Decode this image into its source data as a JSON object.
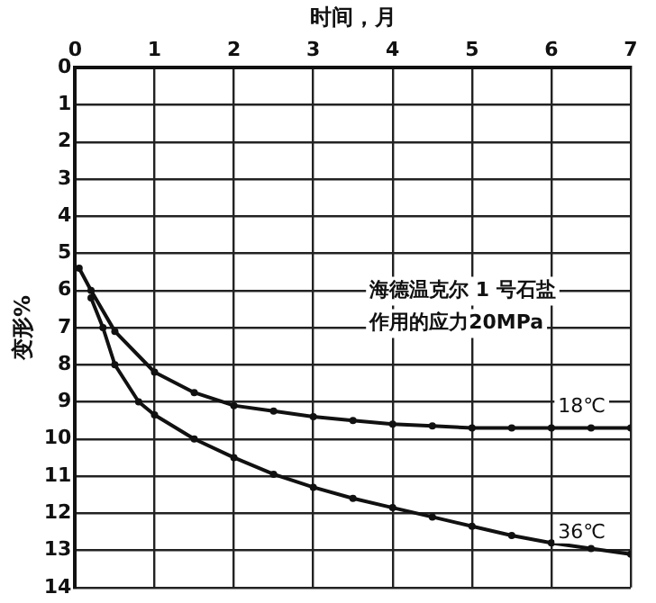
{
  "chart_data": {
    "type": "line",
    "xlabel": "时间，月",
    "ylabel": "变形%",
    "annotations": [
      "海德温克尔 1 号石盐",
      "作用的应力20MPa"
    ],
    "xlim": [
      0,
      7
    ],
    "xticks": [
      0,
      1,
      2,
      3,
      4,
      5,
      6,
      7
    ],
    "ylim": [
      14,
      0
    ],
    "yticks": [
      0,
      1,
      2,
      3,
      4,
      5,
      6,
      7,
      8,
      9,
      10,
      11,
      12,
      13,
      14
    ],
    "grid": true,
    "legend": false,
    "marker": "circle",
    "line_style": "solid",
    "series": [
      {
        "name": "18℃",
        "color": "#111111",
        "x": [
          0.05,
          0.2,
          0.5,
          1,
          1.5,
          2,
          2.5,
          3,
          3.5,
          4,
          4.5,
          5,
          5.5,
          6,
          6.5,
          7
        ],
        "values": [
          5.4,
          6.0,
          7.1,
          8.2,
          8.75,
          9.1,
          9.25,
          9.4,
          9.5,
          9.6,
          9.65,
          9.7,
          9.7,
          9.7,
          9.7,
          9.7
        ]
      },
      {
        "name": "36℃",
        "color": "#111111",
        "x": [
          0.2,
          0.35,
          0.5,
          0.8,
          1,
          1.5,
          2,
          2.5,
          3,
          3.5,
          4,
          4.5,
          5,
          5.5,
          6,
          6.5,
          7
        ],
        "values": [
          6.2,
          7.0,
          8.0,
          9.0,
          9.35,
          10.0,
          10.5,
          10.95,
          11.3,
          11.6,
          11.85,
          12.1,
          12.35,
          12.6,
          12.8,
          12.95,
          13.1
        ]
      }
    ]
  }
}
